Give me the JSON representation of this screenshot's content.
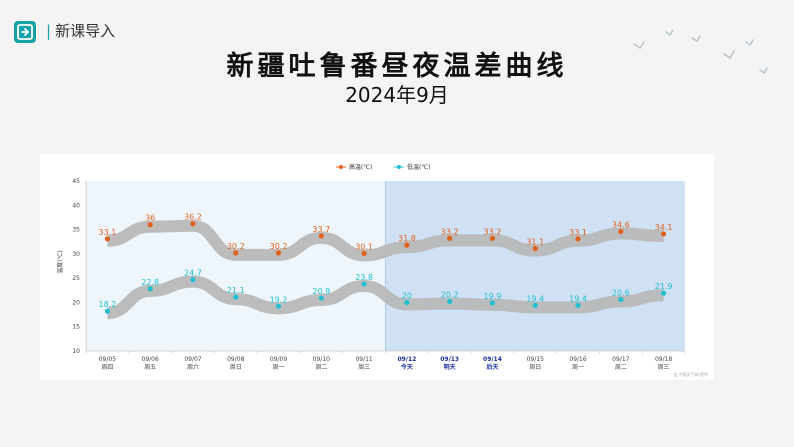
{
  "header": {
    "section_label": "新课导入",
    "logo_icon": "import-arrow-icon"
  },
  "title": "新疆吐鲁番昼夜温差曲线",
  "subtitle": "2024年9月",
  "chart_data": {
    "type": "line",
    "title": "",
    "ylabel": "温度(℃)",
    "ylim": [
      10,
      45
    ],
    "yticks": [
      10,
      15,
      20,
      25,
      30,
      35,
      40,
      45
    ],
    "grid": false,
    "legend_position": "top-center",
    "dates": [
      "09/05",
      "09/06",
      "09/07",
      "09/08",
      "09/09",
      "09/10",
      "09/11",
      "09/12",
      "09/13",
      "09/14",
      "09/15",
      "09/16",
      "09/17",
      "09/18"
    ],
    "day_labels": [
      "周四",
      "周五",
      "周六",
      "周日",
      "周一",
      "周二",
      "周三",
      "今天",
      "明天",
      "后天",
      "周日",
      "周一",
      "周二",
      "周三"
    ],
    "highlight_start_index": 7,
    "series": [
      {
        "name": "高温(℃)",
        "color": "#e2611a",
        "values": [
          33.1,
          36,
          36.2,
          30.2,
          30.2,
          33.7,
          30.1,
          31.8,
          33.2,
          33.2,
          31.1,
          33.1,
          34.6,
          34.1
        ]
      },
      {
        "name": "低温(℃)",
        "color": "#1fc0d0",
        "values": [
          18.2,
          22.8,
          24.7,
          21.1,
          19.2,
          20.9,
          23.8,
          20,
          20.2,
          19.9,
          19.4,
          19.4,
          20.6,
          21.9
        ]
      }
    ],
    "colors": {
      "past_bg": "#eef6fc",
      "future_bg": "#cfe1f3",
      "band": "#b8b8b8"
    }
  },
  "credit": "由 中国天气网 提供"
}
